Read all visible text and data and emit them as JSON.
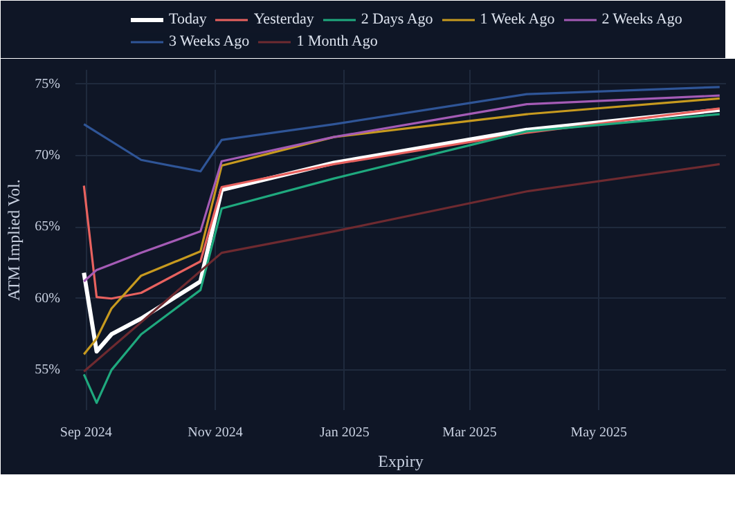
{
  "chart_data": {
    "type": "line",
    "xlabel": "Expiry",
    "ylabel": "ATM Implied Vol.",
    "x": [
      "2024-08-31",
      "2024-09-06",
      "2024-09-13",
      "2024-09-27",
      "2024-10-25",
      "2024-11-04",
      "2024-12-27",
      "2025-03-28",
      "2025-06-27"
    ],
    "series": [
      {
        "name": "Today",
        "color": "#ffffff",
        "values": [
          61.8,
          56.3,
          57.5,
          58.6,
          61.2,
          67.6,
          69.5,
          71.8,
          73.2
        ]
      },
      {
        "name": "Yesterday",
        "color": "#e8625f",
        "values": [
          67.9,
          60.1,
          60.0,
          60.4,
          62.6,
          67.8,
          69.4,
          71.6,
          73.3
        ]
      },
      {
        "name": "2 Days Ago",
        "color": "#1fa97e",
        "values": [
          54.7,
          52.7,
          55.0,
          57.5,
          60.6,
          66.3,
          68.4,
          71.7,
          72.9
        ]
      },
      {
        "name": "1 Week Ago",
        "color": "#c79a1f",
        "values": [
          56.1,
          57.2,
          59.3,
          61.6,
          63.3,
          69.3,
          71.3,
          72.9,
          74.0
        ]
      },
      {
        "name": "2 Weeks Ago",
        "color": "#a45bb5",
        "values": [
          61.2,
          62.0,
          62.4,
          63.2,
          64.7,
          69.6,
          71.3,
          73.6,
          74.2
        ]
      },
      {
        "name": "3 Weeks Ago",
        "color": "#2f5597",
        "x": [
          "2024-08-31",
          "2024-09-27",
          "2024-10-25",
          "2024-11-04",
          "2024-12-27",
          "2025-03-28",
          "2025-06-27"
        ],
        "values": [
          72.2,
          69.7,
          68.9,
          71.1,
          72.2,
          74.3,
          74.8
        ]
      },
      {
        "name": "1 Month Ago",
        "color": "#6e2a30",
        "x": [
          "2024-08-31",
          "2024-11-04",
          "2024-12-27",
          "2025-03-28",
          "2025-06-27"
        ],
        "values": [
          54.9,
          63.2,
          64.7,
          67.5,
          69.4
        ]
      }
    ],
    "xlim": [
      "2024-08-27",
      "2025-06-30"
    ],
    "xticks": [
      {
        "value": "2024-09-01",
        "label": "Sep 2024"
      },
      {
        "value": "2024-11-01",
        "label": "Nov 2024"
      },
      {
        "value": "2025-01-01",
        "label": "Jan 2025"
      },
      {
        "value": "2025-03-01",
        "label": "Mar 2025"
      },
      {
        "value": "2025-05-01",
        "label": "May 2025"
      }
    ],
    "ylim": [
      52.2,
      76
    ],
    "yticks": [
      {
        "value": 55,
        "label": "55%"
      },
      {
        "value": 60,
        "label": "60%"
      },
      {
        "value": 65,
        "label": "65%"
      },
      {
        "value": 70,
        "label": "70%"
      },
      {
        "value": 75,
        "label": "75%"
      }
    ],
    "grid": true,
    "legend": "top",
    "line_style": "solid",
    "marker": "none"
  }
}
